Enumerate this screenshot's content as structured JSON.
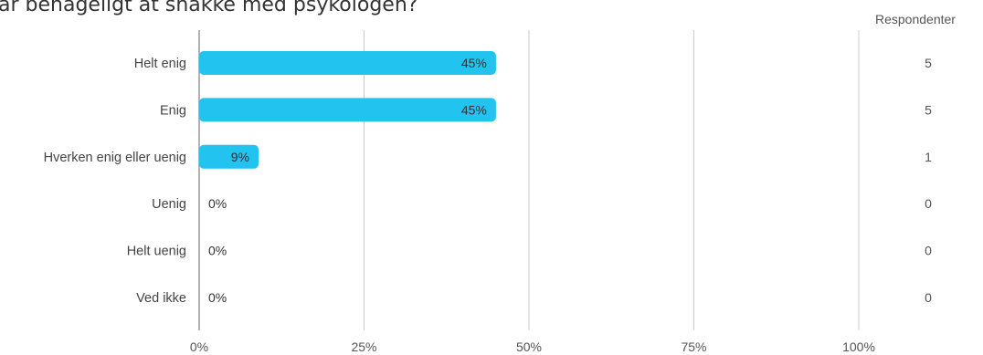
{
  "title": "ar behageligt at snakke med psykologen?",
  "respondents_header": "Respondenter",
  "colors": {
    "bar": "#22c3ef",
    "grid": "#cccccc",
    "axis": "#999999"
  },
  "chart_data": {
    "type": "bar",
    "orientation": "horizontal",
    "categories": [
      "Helt enig",
      "Enig",
      "Hverken enig eller uenig",
      "Uenig",
      "Helt uenig",
      "Ved ikke"
    ],
    "values": [
      45,
      45,
      9,
      0,
      0,
      0
    ],
    "value_labels": [
      "45%",
      "45%",
      "9%",
      "0%",
      "0%",
      "0%"
    ],
    "respondents": [
      5,
      5,
      1,
      0,
      0,
      0
    ],
    "xlim": [
      0,
      100
    ],
    "xticks": [
      0,
      25,
      50,
      75,
      100
    ],
    "xtick_labels": [
      "0%",
      "25%",
      "50%",
      "75%",
      "100%"
    ],
    "grid": true
  }
}
